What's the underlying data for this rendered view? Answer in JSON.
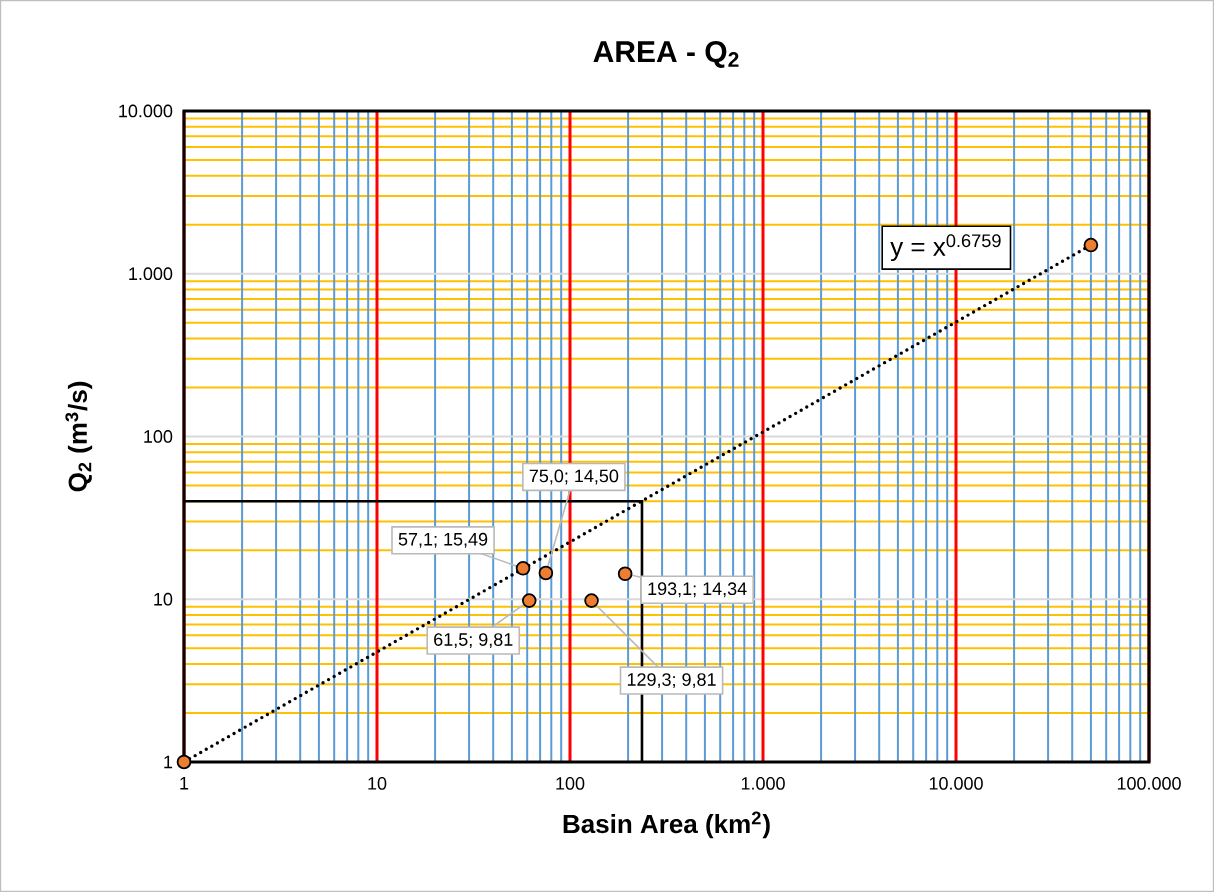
{
  "chart_data": {
    "type": "scatter",
    "title": "AREA - Q$_{2}$",
    "xlabel": "Basin Area (km$^{2}$)",
    "ylabel": "Q$_{2}$ (m$^{3}$/s)",
    "log": "xy",
    "grid": true,
    "marker": "circle",
    "xlim": [
      1,
      100000
    ],
    "ylim": [
      1,
      10000
    ],
    "xticks": [
      1,
      {
        "value": 2,
        "label": null
      },
      {
        "value": 3,
        "label": null
      },
      {
        "value": 4,
        "label": null
      },
      {
        "value": 5,
        "label": null
      },
      {
        "value": 6,
        "label": null
      },
      {
        "value": 7,
        "label": null
      },
      {
        "value": 8,
        "label": null
      },
      {
        "value": 9,
        "label": null
      },
      10,
      {
        "value": 20,
        "label": null
      },
      {
        "value": 30,
        "label": null
      },
      {
        "value": 40,
        "label": null
      },
      {
        "value": 50,
        "label": null
      },
      {
        "value": 60,
        "label": null
      },
      {
        "value": 70,
        "label": null
      },
      {
        "value": 80,
        "label": null
      },
      {
        "value": 90,
        "label": null
      },
      100,
      {
        "value": 200,
        "label": null
      },
      {
        "value": 300,
        "label": null
      },
      {
        "value": 400,
        "label": null
      },
      {
        "value": 500,
        "label": null
      },
      {
        "value": 600,
        "label": null
      },
      {
        "value": 700,
        "label": null
      },
      {
        "value": 800,
        "label": null
      },
      {
        "value": 900,
        "label": null
      },
      {
        "value": 1000,
        "label": "1.000"
      },
      {
        "value": 2000,
        "label": null
      },
      {
        "value": 3000,
        "label": null
      },
      {
        "value": 4000,
        "label": null
      },
      {
        "value": 5000,
        "label": null
      },
      {
        "value": 6000,
        "label": null
      },
      {
        "value": 7000,
        "label": null
      },
      {
        "value": 8000,
        "label": null
      },
      {
        "value": 9000,
        "label": null
      },
      {
        "value": 10000,
        "label": "10.000"
      },
      {
        "value": 20000,
        "label": null
      },
      {
        "value": 30000,
        "label": null
      },
      {
        "value": 40000,
        "label": null
      },
      {
        "value": 50000,
        "label": null
      },
      {
        "value": 60000,
        "label": null
      },
      {
        "value": 70000,
        "label": null
      },
      {
        "value": 80000,
        "label": null
      },
      {
        "value": 90000,
        "label": null
      },
      {
        "value": 100000,
        "label": "100.000"
      }
    ],
    "yticks": [
      1,
      {
        "value": 2,
        "label": null
      },
      {
        "value": 3,
        "label": null
      },
      {
        "value": 4,
        "label": null
      },
      {
        "value": 5,
        "label": null
      },
      {
        "value": 6,
        "label": null
      },
      {
        "value": 7,
        "label": null
      },
      {
        "value": 8,
        "label": null
      },
      {
        "value": 9,
        "label": null
      },
      10,
      {
        "value": 20,
        "label": null
      },
      {
        "value": 30,
        "label": null
      },
      {
        "value": 40,
        "label": null
      },
      {
        "value": 50,
        "label": null
      },
      {
        "value": 60,
        "label": null
      },
      {
        "value": 70,
        "label": null
      },
      {
        "value": 80,
        "label": null
      },
      {
        "value": 90,
        "label": null
      },
      100,
      {
        "value": 200,
        "label": null
      },
      {
        "value": 300,
        "label": null
      },
      {
        "value": 400,
        "label": null
      },
      {
        "value": 500,
        "label": null
      },
      {
        "value": 600,
        "label": null
      },
      {
        "value": 700,
        "label": null
      },
      {
        "value": 800,
        "label": null
      },
      {
        "value": 900,
        "label": null
      },
      {
        "value": 1000,
        "label": "1.000"
      },
      {
        "value": 2000,
        "label": null
      },
      {
        "value": 3000,
        "label": null
      },
      {
        "value": 4000,
        "label": null
      },
      {
        "value": 5000,
        "label": null
      },
      {
        "value": 6000,
        "label": null
      },
      {
        "value": 7000,
        "label": null
      },
      {
        "value": 8000,
        "label": null
      },
      {
        "value": 9000,
        "label": null
      },
      {
        "value": 10000,
        "label": "10.000"
      }
    ],
    "series": [
      {
        "type": "line",
        "color": "#000000",
        "line_style": "solid",
        "marker": "none",
        "x": [
          1,
          236,
          236
        ],
        "values": [
          40,
          40,
          1
        ]
      },
      {
        "type": "line",
        "color": "#000000",
        "line_style": "dotted",
        "marker": "none",
        "x": [
          1,
          50000
        ],
        "values": [
          1,
          1500
        ]
      },
      {
        "color": "#ed7d31",
        "x": [
          1,
          57.1,
          75.0,
          61.5,
          129.3,
          193.1,
          50000
        ],
        "values": [
          1,
          15.49,
          14.5,
          9.81,
          9.81,
          14.34,
          1500
        ]
      }
    ],
    "annotations": [
      {
        "text": "57,1; 15,49",
        "x": 57.1,
        "y": 15.49
      },
      {
        "text": "75,0; 14,50",
        "x": 75.0,
        "y": 14.5
      },
      {
        "text": "61,5; 9,81",
        "x": 61.5,
        "y": 9.81
      },
      {
        "text": "129,3; 9,81",
        "x": 129.3,
        "y": 9.81
      },
      {
        "text": "193,1; 14,34",
        "x": 193.1,
        "y": 14.34
      },
      "y = x$^{0.6759}$"
    ]
  }
}
